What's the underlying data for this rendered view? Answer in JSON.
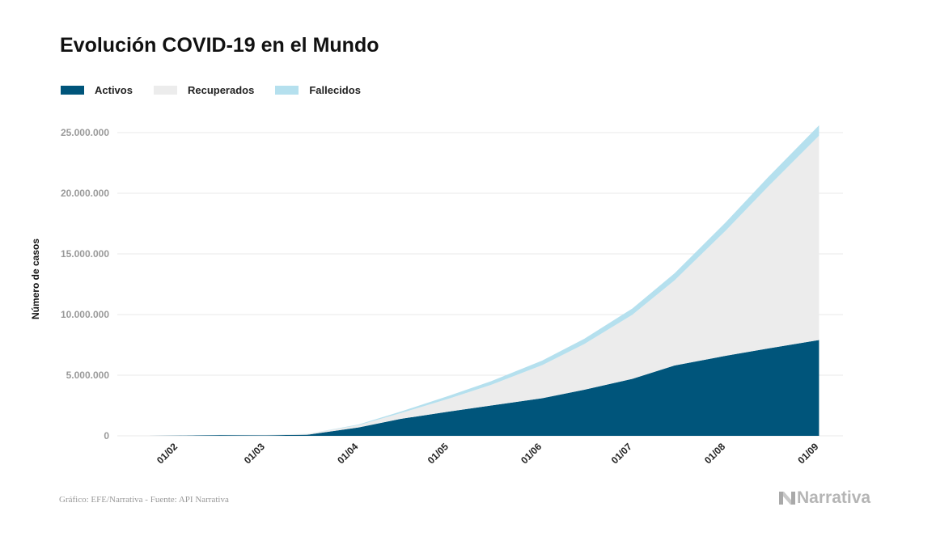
{
  "title": "Evolución COVID-19 en el Mundo",
  "footer": "Gráfico: EFE/Narrativa - Fuente: API Narrativa",
  "logo": "Narrativa",
  "chart_data": {
    "type": "area",
    "stacked": true,
    "title": "Evolución COVID-19 en el Mundo",
    "ylabel": "Número de casos",
    "xlabel": "",
    "ylim": [
      0,
      25000000
    ],
    "yticks": [
      0,
      5000000,
      10000000,
      15000000,
      20000000,
      25000000
    ],
    "ytick_labels": [
      "0",
      "5.000.000",
      "10.000.000",
      "15.000.000",
      "20.000.000",
      "25.000.000"
    ],
    "xticks": [
      "2020-02-01",
      "2020-03-01",
      "2020-04-01",
      "2020-05-01",
      "2020-06-01",
      "2020-07-01",
      "2020-08-01",
      "2020-09-01"
    ],
    "xtick_labels": [
      "01/02",
      "01/03",
      "01/04",
      "01/05",
      "01/06",
      "01/07",
      "01/08",
      "01/09"
    ],
    "grid": true,
    "legend_position": "top-left",
    "x": [
      "2020-01-22",
      "2020-02-01",
      "2020-02-15",
      "2020-03-01",
      "2020-03-15",
      "2020-04-01",
      "2020-04-15",
      "2020-05-01",
      "2020-05-15",
      "2020-06-01",
      "2020-06-15",
      "2020-07-01",
      "2020-07-15",
      "2020-08-01",
      "2020-08-15",
      "2020-09-01"
    ],
    "series": [
      {
        "name": "Activos",
        "color": "#00557b",
        "values": [
          500,
          11000,
          58000,
          42000,
          90000,
          690000,
          1400000,
          2000000,
          2500000,
          3100000,
          3800000,
          4700000,
          5800000,
          6600000,
          7200000,
          7900000
        ]
      },
      {
        "name": "Recuperados",
        "color": "#ececec",
        "values": [
          80,
          740,
          11300,
          43000,
          70500,
          193000,
          474000,
          1066000,
          1697000,
          2727000,
          3767000,
          5287000,
          7020000,
          10320000,
          13330000,
          16845000
        ]
      },
      {
        "name": "Fallecidos",
        "color": "#b5e0ee",
        "values": [
          20,
          260,
          1700,
          3000,
          6500,
          47000,
          126000,
          234000,
          303000,
          373000,
          433000,
          513000,
          580000,
          680000,
          770000,
          855000
        ]
      }
    ]
  }
}
